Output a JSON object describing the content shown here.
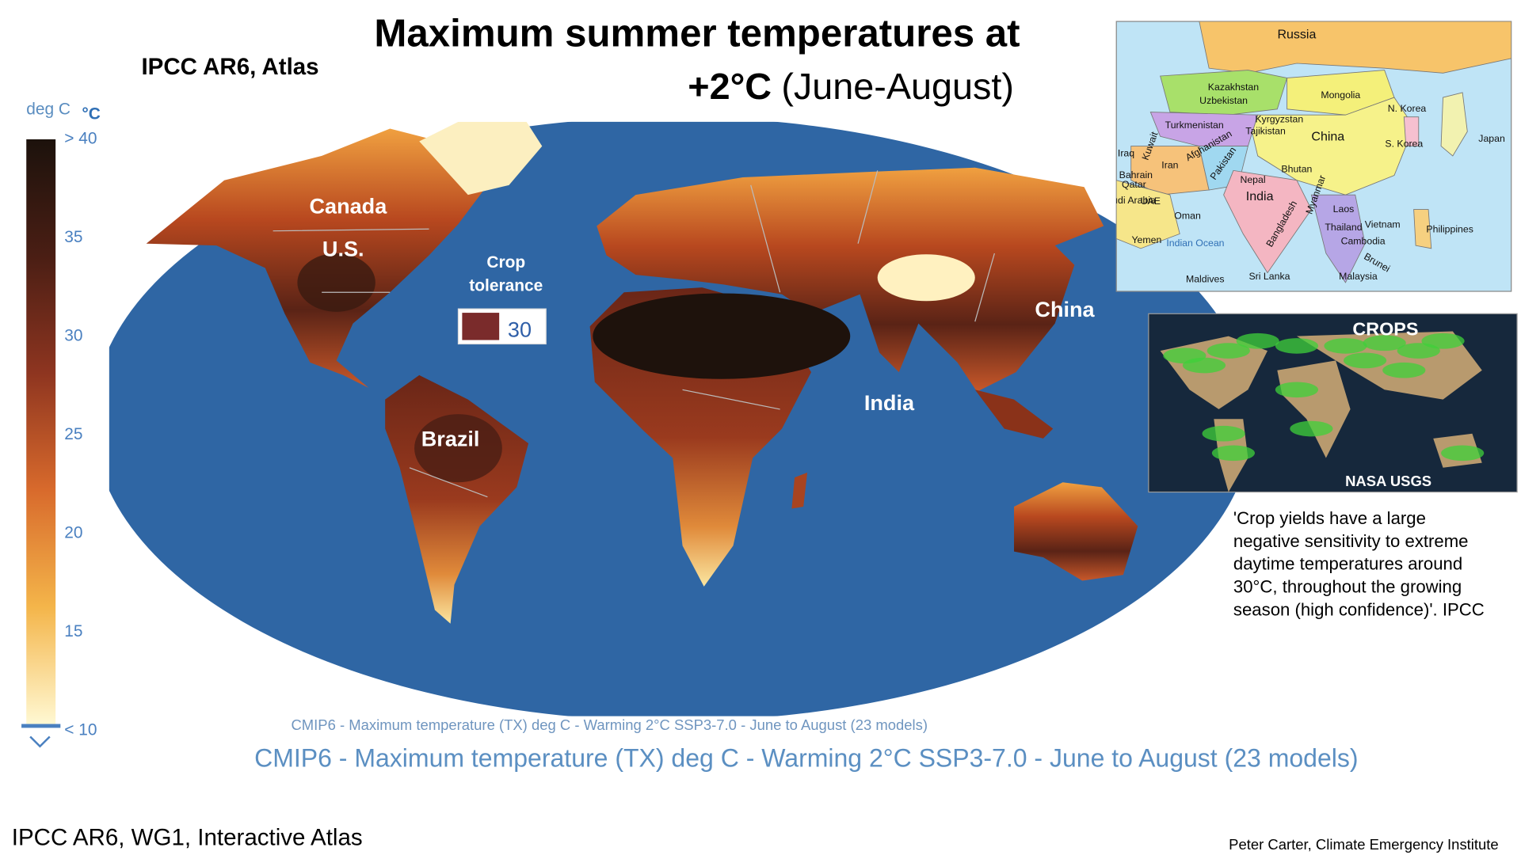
{
  "header": {
    "title_line1": "Maximum summer temperatures at",
    "title_line2_bold": "+2°C",
    "title_line2_rest": "(June-August)",
    "source_label": "IPCC AR6, Atlas"
  },
  "legend": {
    "unit": "deg C",
    "unit_symbol": "°C",
    "ticks": [
      {
        "value": 40,
        "label": "> 40"
      },
      35,
      30,
      25,
      20,
      15,
      {
        "value": 10,
        "label": "< 10"
      }
    ]
  },
  "map": {
    "region_labels": [
      "Canada",
      "U.S.",
      "Brazil",
      "China",
      "India"
    ],
    "crop_tolerance": {
      "label_line1": "Crop",
      "label_line2": "tolerance",
      "value": 30
    },
    "caption_small": "CMIP6 - Maximum temperature (TX) deg C - Warming 2°C SSP3-7.0 - June to August (23 models)",
    "caption_large": "CMIP6 - Maximum temperature (TX) deg C - Warming 2°C SSP3-7.0 - June to August (23 models)"
  },
  "inset_asia": {
    "labels": [
      "Russia",
      "Kazakhstan",
      "Uzbekistan",
      "Mongolia",
      "Turkmenistan",
      "Kyrgyzstan",
      "Tajikistan",
      "China",
      "N. Korea",
      "S. Korea",
      "Japan",
      "Iraq",
      "Kuwait",
      "Iran",
      "Afghanistan",
      "Pakistan",
      "Bahrain",
      "Qatar",
      "Saudi Arabia",
      "UAE",
      "Nepal",
      "Bhutan",
      "India",
      "Myanmar",
      "Bangladesh",
      "Oman",
      "Yemen",
      "Indian Ocean",
      "Laos",
      "Thailand",
      "Vietnam",
      "Cambodia",
      "Philippines",
      "Brunei",
      "Malaysia",
      "Maldives",
      "Sri Lanka"
    ]
  },
  "inset_crops": {
    "title": "CROPS",
    "credit": "NASA USGS"
  },
  "quote": {
    "lines": [
      "'Crop yields have a large",
      "negative sensitivity to extreme",
      "daytime temperatures around",
      "30°C, throughout the growing",
      "season (high confidence)'. IPCC"
    ]
  },
  "footer": {
    "source": "IPCC AR6, WG1, Interactive Atlas",
    "credit": "Peter Carter, Climate Emergency Institute"
  }
}
